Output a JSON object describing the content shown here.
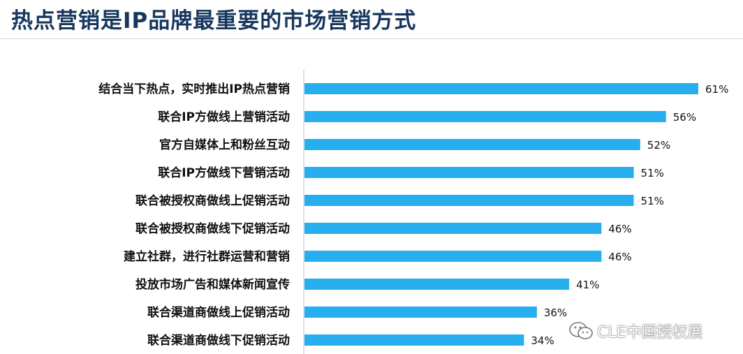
{
  "title": "热点营销是IP品牌最重要的市场营销方式",
  "watermark": "CLE中国授权展",
  "colors": {
    "bar": "#27aeef",
    "title": "#17375e"
  },
  "chart_data": {
    "type": "bar",
    "orientation": "horizontal",
    "categories": [
      "结合当下热点，实时推出IP热点营销",
      "联合IP方做线上营销活动",
      "官方自媒体上和粉丝互动",
      "联合IP方做线下营销活动",
      "联合被授权商做线上促销活动",
      "联合被授权商做线下促销活动",
      "建立社群，进行社群运营和营销",
      "投放市场广告和媒体新闻宣传",
      "联合渠道商做线上促销活动",
      "联合渠道商做线下促销活动"
    ],
    "values": [
      61,
      56,
      52,
      51,
      51,
      46,
      46,
      41,
      36,
      34
    ],
    "value_labels": [
      "61%",
      "56%",
      "52%",
      "51%",
      "51%",
      "46%",
      "46%",
      "41%",
      "36%",
      "34%"
    ],
    "unit": "%",
    "xlim": [
      0,
      61
    ],
    "grid": false,
    "legend": "none"
  }
}
